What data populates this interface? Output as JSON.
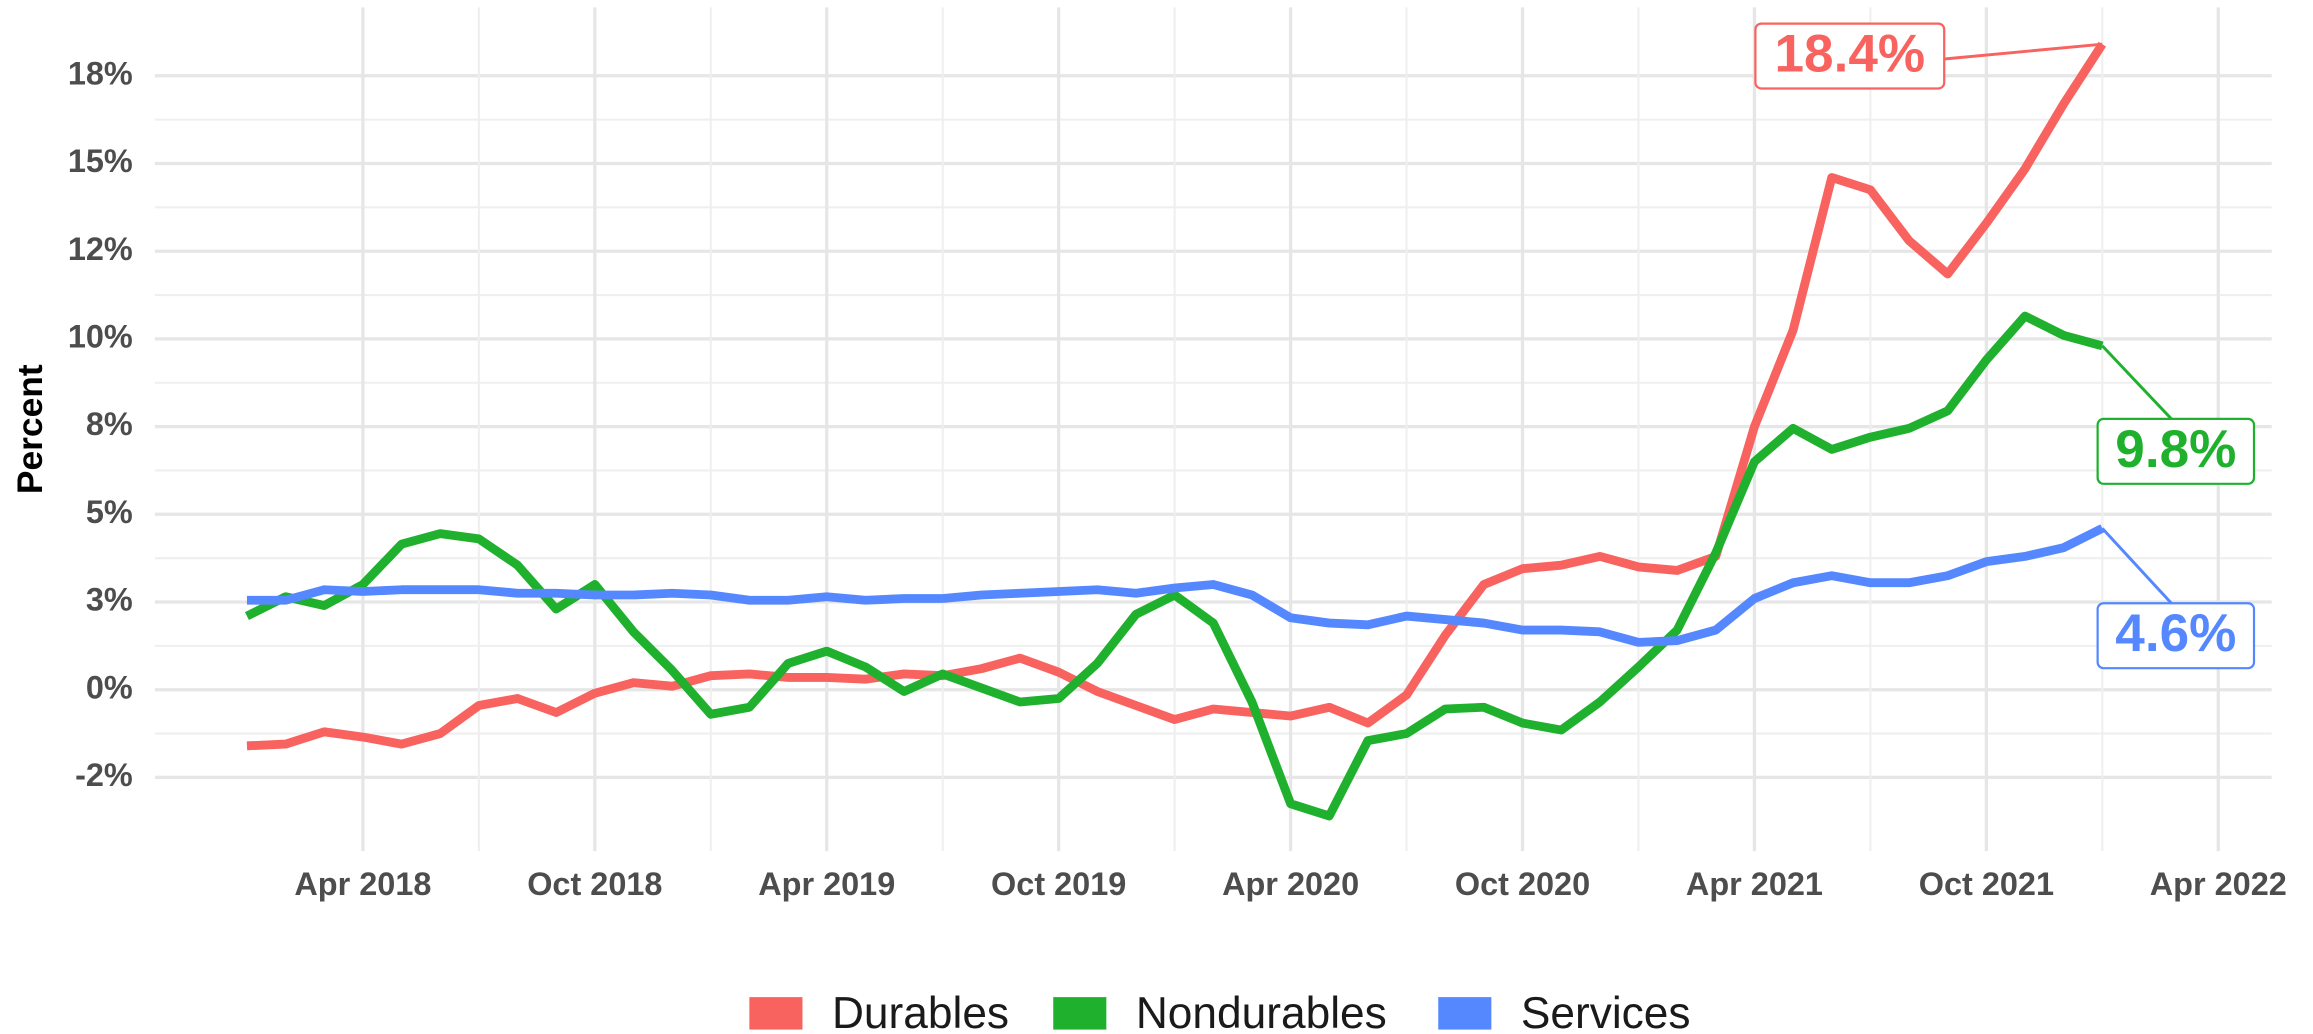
{
  "chart_data": {
    "type": "line",
    "y_label": "Percent",
    "x": [
      "2018-01",
      "2018-02",
      "2018-03",
      "2018-04",
      "2018-05",
      "2018-06",
      "2018-07",
      "2018-08",
      "2018-09",
      "2018-10",
      "2018-11",
      "2018-12",
      "2019-01",
      "2019-02",
      "2019-03",
      "2019-04",
      "2019-05",
      "2019-06",
      "2019-07",
      "2019-08",
      "2019-09",
      "2019-10",
      "2019-11",
      "2019-12",
      "2020-01",
      "2020-02",
      "2020-03",
      "2020-04",
      "2020-05",
      "2020-06",
      "2020-07",
      "2020-08",
      "2020-09",
      "2020-10",
      "2020-11",
      "2020-12",
      "2021-01",
      "2021-02",
      "2021-03",
      "2021-04",
      "2021-05",
      "2021-06",
      "2021-07",
      "2021-08",
      "2021-09",
      "2021-10",
      "2021-11",
      "2021-12",
      "2022-01"
    ],
    "series": [
      {
        "name": "Durables",
        "color": "#f8635f",
        "end_label": "18.4%",
        "values": [
          -1.6,
          -1.55,
          -1.2,
          -1.35,
          -1.55,
          -1.25,
          -0.45,
          -0.25,
          -0.65,
          -0.1,
          0.2,
          0.1,
          0.4,
          0.45,
          0.35,
          0.35,
          0.3,
          0.45,
          0.4,
          0.6,
          0.9,
          0.5,
          -0.05,
          -0.45,
          -0.85,
          -0.55,
          -0.65,
          -0.75,
          -0.5,
          -0.95,
          -0.15,
          1.55,
          3.0,
          3.45,
          3.55,
          3.8,
          3.5,
          3.4,
          3.8,
          7.5,
          10.25,
          14.6,
          14.25,
          12.8,
          11.85,
          13.3,
          14.85,
          16.7,
          18.4
        ]
      },
      {
        "name": "Nondurables",
        "color": "#1fb12d",
        "end_label": "9.8%",
        "values": [
          2.1,
          2.65,
          2.4,
          3.0,
          4.15,
          4.45,
          4.3,
          3.55,
          2.3,
          3.0,
          1.65,
          0.55,
          -0.7,
          -0.5,
          0.75,
          1.1,
          0.65,
          -0.05,
          0.45,
          0.05,
          -0.35,
          -0.25,
          0.75,
          2.15,
          2.7,
          1.9,
          -0.35,
          -3.25,
          -3.6,
          -1.45,
          -1.25,
          -0.55,
          -0.5,
          -0.95,
          -1.15,
          -0.35,
          0.65,
          1.7,
          3.9,
          6.5,
          7.45,
          6.85,
          7.2,
          7.45,
          7.95,
          9.4,
          10.65,
          10.1,
          9.8
        ]
      },
      {
        "name": "Services",
        "color": "#5588ff",
        "end_label": "4.6%",
        "values": [
          2.55,
          2.55,
          2.85,
          2.8,
          2.85,
          2.85,
          2.85,
          2.75,
          2.75,
          2.7,
          2.7,
          2.75,
          2.7,
          2.55,
          2.55,
          2.65,
          2.55,
          2.6,
          2.6,
          2.7,
          2.75,
          2.8,
          2.85,
          2.75,
          2.9,
          3.0,
          2.7,
          2.05,
          1.9,
          1.85,
          2.1,
          2.0,
          1.9,
          1.7,
          1.7,
          1.65,
          1.35,
          1.4,
          1.7,
          2.6,
          3.05,
          3.25,
          3.05,
          3.05,
          3.25,
          3.65,
          3.8,
          4.05,
          4.6
        ]
      }
    ],
    "xlim": [
      "2017-11",
      "2022-05"
    ],
    "xticks": [
      {
        "value": "2018-04",
        "label": "Apr 2018"
      },
      {
        "value": "2018-10",
        "label": "Oct 2018"
      },
      {
        "value": "2019-04",
        "label": "Apr 2019"
      },
      {
        "value": "2019-10",
        "label": "Oct 2019"
      },
      {
        "value": "2020-04",
        "label": "Apr 2020"
      },
      {
        "value": "2020-10",
        "label": "Oct 2020"
      },
      {
        "value": "2021-04",
        "label": "Apr 2021"
      },
      {
        "value": "2021-10",
        "label": "Oct 2021"
      },
      {
        "value": "2022-04",
        "label": "Apr 2022"
      }
    ],
    "ylim": [
      -4.6,
      19.45
    ],
    "yticks": [
      {
        "value": -2.5,
        "label": "-2%"
      },
      {
        "value": 0,
        "label": "0%"
      },
      {
        "value": 2.5,
        "label": "3%"
      },
      {
        "value": 5,
        "label": "5%"
      },
      {
        "value": 7.5,
        "label": "8%"
      },
      {
        "value": 10,
        "label": "10%"
      },
      {
        "value": 12.5,
        "label": "12%"
      },
      {
        "value": 15,
        "label": "15%"
      },
      {
        "value": 17.5,
        "label": "18%"
      }
    ],
    "grid": true,
    "legend": "bottom"
  }
}
